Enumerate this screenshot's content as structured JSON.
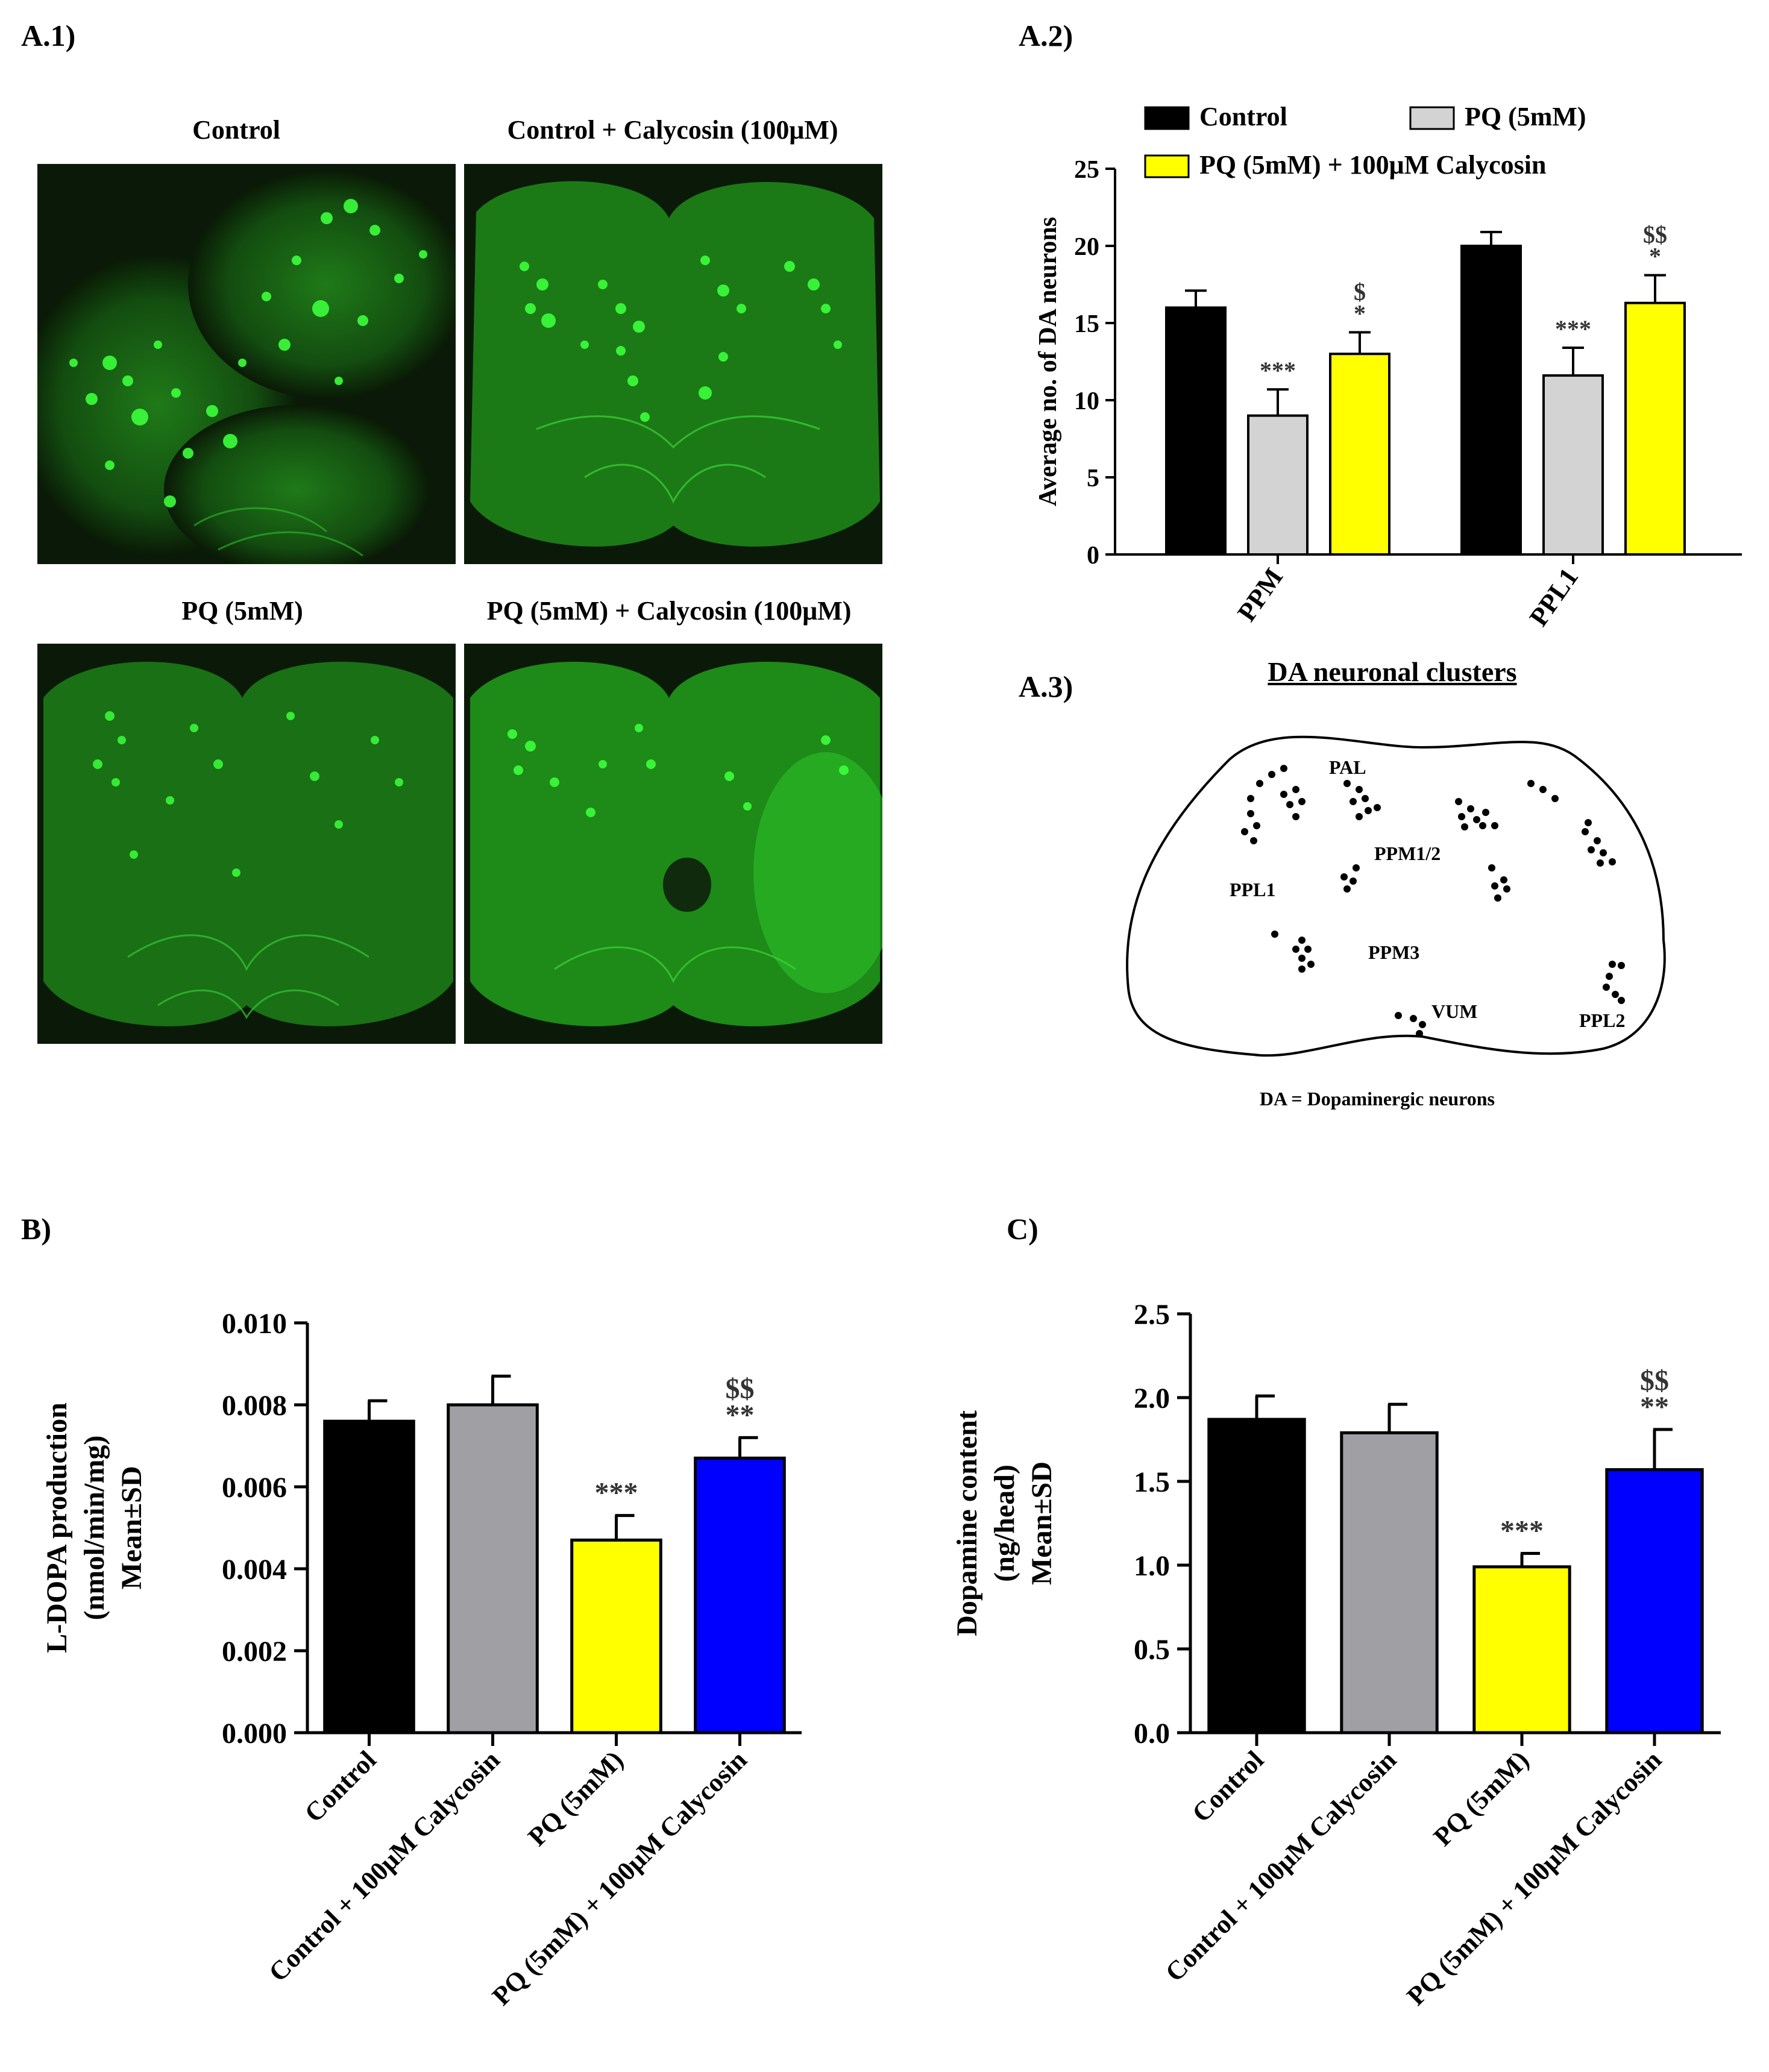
{
  "panel_labels": {
    "a1": "A.1)",
    "a2": "A.2)",
    "a3": "A.3)",
    "b": "B)",
    "c": "C)"
  },
  "micrographs": [
    {
      "title": "Control"
    },
    {
      "title": "Control + Calycosin (100μM)"
    },
    {
      "title": "PQ (5mM)"
    },
    {
      "title": "PQ (5mM) + Calycosin (100μM)"
    }
  ],
  "diagram": {
    "title": "DA neuronal clusters",
    "caption": "DA = Dopaminergic  neurons",
    "clusters": [
      "PAL",
      "PPM1/2",
      "PPL1",
      "PPM3",
      "VUM",
      "PPL2"
    ]
  },
  "colors": {
    "control": "#000000",
    "pq": "#d3d3d3",
    "pq_calycosin": "#ffff00",
    "control_calycosin": "#a0a0a4",
    "pq_calycosin_blue": "#0000ff",
    "micrograph_green": "#2ee82e"
  },
  "chart_data": [
    {
      "id": "A.2",
      "type": "bar",
      "categories": [
        "PPM",
        "PPL1"
      ],
      "ylabel": "Average no. of DA neurons",
      "ylim": [
        0,
        25
      ],
      "yticks": [
        "0",
        "5",
        "10",
        "15",
        "20",
        "25"
      ],
      "legend_position": "top",
      "series": [
        {
          "name": "Control",
          "color": "#000000",
          "values": [
            16,
            20
          ],
          "errors": [
            1.1,
            0.9
          ],
          "annotations": [
            "",
            ""
          ]
        },
        {
          "name": "PQ (5mM)",
          "color": "#d3d3d3",
          "values": [
            9,
            11.6
          ],
          "errors": [
            1.7,
            1.8
          ],
          "annotations": [
            "***",
            "***"
          ]
        },
        {
          "name": "PQ (5mM) + 100μM Calycosin",
          "color": "#ffff00",
          "values": [
            13,
            16.3
          ],
          "errors": [
            1.4,
            1.8
          ],
          "annotations": [
            "$\n*",
            "$$\n*"
          ]
        }
      ]
    },
    {
      "id": "B",
      "type": "bar",
      "categories": [
        "Control",
        "Control + 100μM Calycosin",
        "PQ (5mM)",
        "PQ (5mM) + 100μM Calycosin"
      ],
      "values": [
        0.0076,
        0.008,
        0.0047,
        0.0067
      ],
      "errors": [
        0.0005,
        0.0007,
        0.0006,
        0.0005
      ],
      "colors": [
        "#000000",
        "#a0a0a4",
        "#ffff00",
        "#0000ff"
      ],
      "annotations": [
        "",
        "",
        "***",
        "$$\n**"
      ],
      "ylabel_lines": [
        "L-DOPA production",
        "(nmol/min/mg)",
        "Mean±SD"
      ],
      "ylim": [
        0,
        0.01
      ],
      "yticks": [
        "0.000",
        "0.002",
        "0.004",
        "0.006",
        "0.008",
        "0.010"
      ]
    },
    {
      "id": "C",
      "type": "bar",
      "categories": [
        "Control",
        "Control + 100μM Calycosin",
        "PQ (5mM)",
        "PQ (5mM) + 100μM Calycosin"
      ],
      "values": [
        1.87,
        1.79,
        0.99,
        1.57
      ],
      "errors": [
        0.14,
        0.17,
        0.08,
        0.24
      ],
      "colors": [
        "#000000",
        "#a0a0a4",
        "#ffff00",
        "#0000ff"
      ],
      "annotations": [
        "",
        "",
        "***",
        "$$\n**"
      ],
      "ylabel_lines": [
        "Dopamine content",
        "(ng/head)",
        "Mean±SD"
      ],
      "ylim": [
        0,
        2.5
      ],
      "yticks": [
        "0.0",
        "0.5",
        "1.0",
        "1.5",
        "2.0",
        "2.5"
      ]
    }
  ]
}
